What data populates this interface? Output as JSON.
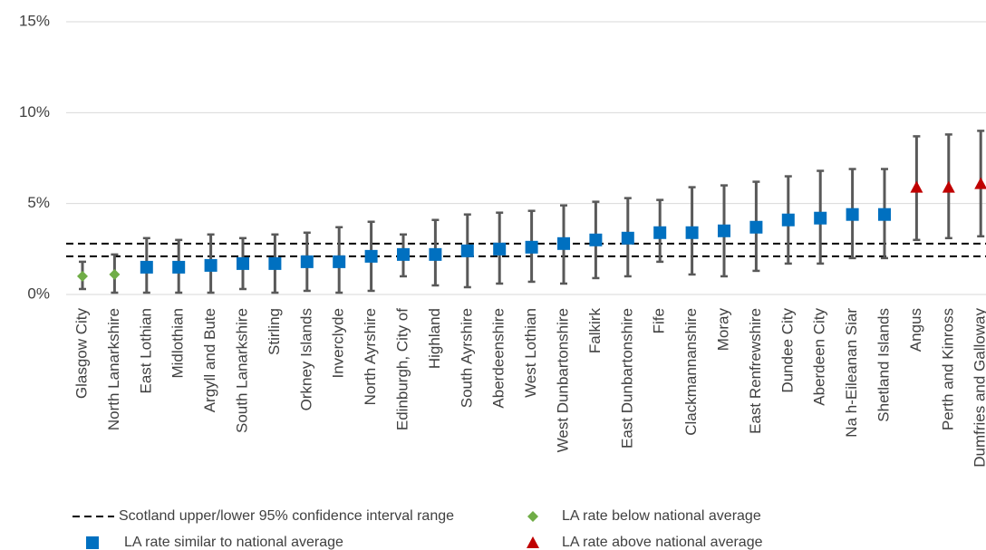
{
  "chart_data": {
    "type": "dot-errorbar",
    "categories": [
      "Glasgow City",
      "North Lanarkshire",
      "East Lothian",
      "Midlothian",
      "Argyll and Bute",
      "South Lanarkshire",
      "Stirling",
      "Orkney Islands",
      "Inverclyde",
      "North Ayrshire",
      "Edinburgh, City of",
      "Highland",
      "South Ayrshire",
      "Aberdeenshire",
      "West Lothian",
      "West Dunbartonshire",
      "Falkirk",
      "East Dunbartonshire",
      "Fife",
      "Clackmannanshire",
      "Moray",
      "East Renfrewshire",
      "Dundee City",
      "Aberdeen City",
      "Na h-Eileanan Siar",
      "Shetland Islands",
      "Angus",
      "Perth and Kinross",
      "Dumfries and Galloway"
    ],
    "series": [
      {
        "name": "LA rate below national average",
        "color": "#70ad47",
        "marker": "diamond",
        "values": [
          1.0,
          1.1,
          null,
          null,
          null,
          null,
          null,
          null,
          null,
          null,
          null,
          null,
          null,
          null,
          null,
          null,
          null,
          null,
          null,
          null,
          null,
          null,
          null,
          null,
          null,
          null,
          null,
          null,
          null
        ]
      },
      {
        "name": "LA rate similar to national average",
        "color": "#0070c0",
        "marker": "square",
        "values": [
          null,
          null,
          1.5,
          1.5,
          1.6,
          1.7,
          1.7,
          1.8,
          1.8,
          2.1,
          2.2,
          2.2,
          2.4,
          2.5,
          2.6,
          2.8,
          3.0,
          3.1,
          3.4,
          3.4,
          3.5,
          3.7,
          4.1,
          4.2,
          4.4,
          4.4,
          null,
          null,
          null
        ]
      },
      {
        "name": "LA rate above national average",
        "color": "#c00000",
        "marker": "triangle",
        "values": [
          null,
          null,
          null,
          null,
          null,
          null,
          null,
          null,
          null,
          null,
          null,
          null,
          null,
          null,
          null,
          null,
          null,
          null,
          null,
          null,
          null,
          null,
          null,
          null,
          null,
          null,
          5.9,
          5.9,
          6.1
        ]
      }
    ],
    "ci_lower": [
      0.3,
      0.1,
      0.1,
      0.1,
      0.1,
      0.3,
      0.1,
      0.2,
      0.1,
      0.2,
      1.0,
      0.5,
      0.4,
      0.6,
      0.7,
      0.6,
      0.9,
      1.0,
      1.8,
      1.1,
      1.0,
      1.3,
      1.7,
      1.7,
      2.0,
      2.0,
      3.0,
      3.1,
      3.2
    ],
    "ci_upper": [
      1.8,
      2.2,
      3.1,
      3.0,
      3.3,
      3.1,
      3.3,
      3.4,
      3.7,
      4.0,
      3.3,
      4.1,
      4.4,
      4.5,
      4.6,
      4.9,
      5.1,
      5.3,
      5.2,
      5.9,
      6.0,
      6.2,
      6.5,
      6.8,
      6.9,
      6.9,
      8.7,
      8.8,
      9.0
    ],
    "error_color": "#595959",
    "reference_lines": {
      "name": "Scotland upper/lower 95% confidence interval range",
      "values": [
        2.8,
        2.1
      ],
      "color": "#000000"
    },
    "ylim": [
      0,
      15
    ],
    "yticks": [
      {
        "value": 0,
        "label": "0%"
      },
      {
        "value": 5,
        "label": "5%"
      },
      {
        "value": 10,
        "label": "10%"
      },
      {
        "value": 15,
        "label": "15%"
      }
    ],
    "grid": true
  }
}
